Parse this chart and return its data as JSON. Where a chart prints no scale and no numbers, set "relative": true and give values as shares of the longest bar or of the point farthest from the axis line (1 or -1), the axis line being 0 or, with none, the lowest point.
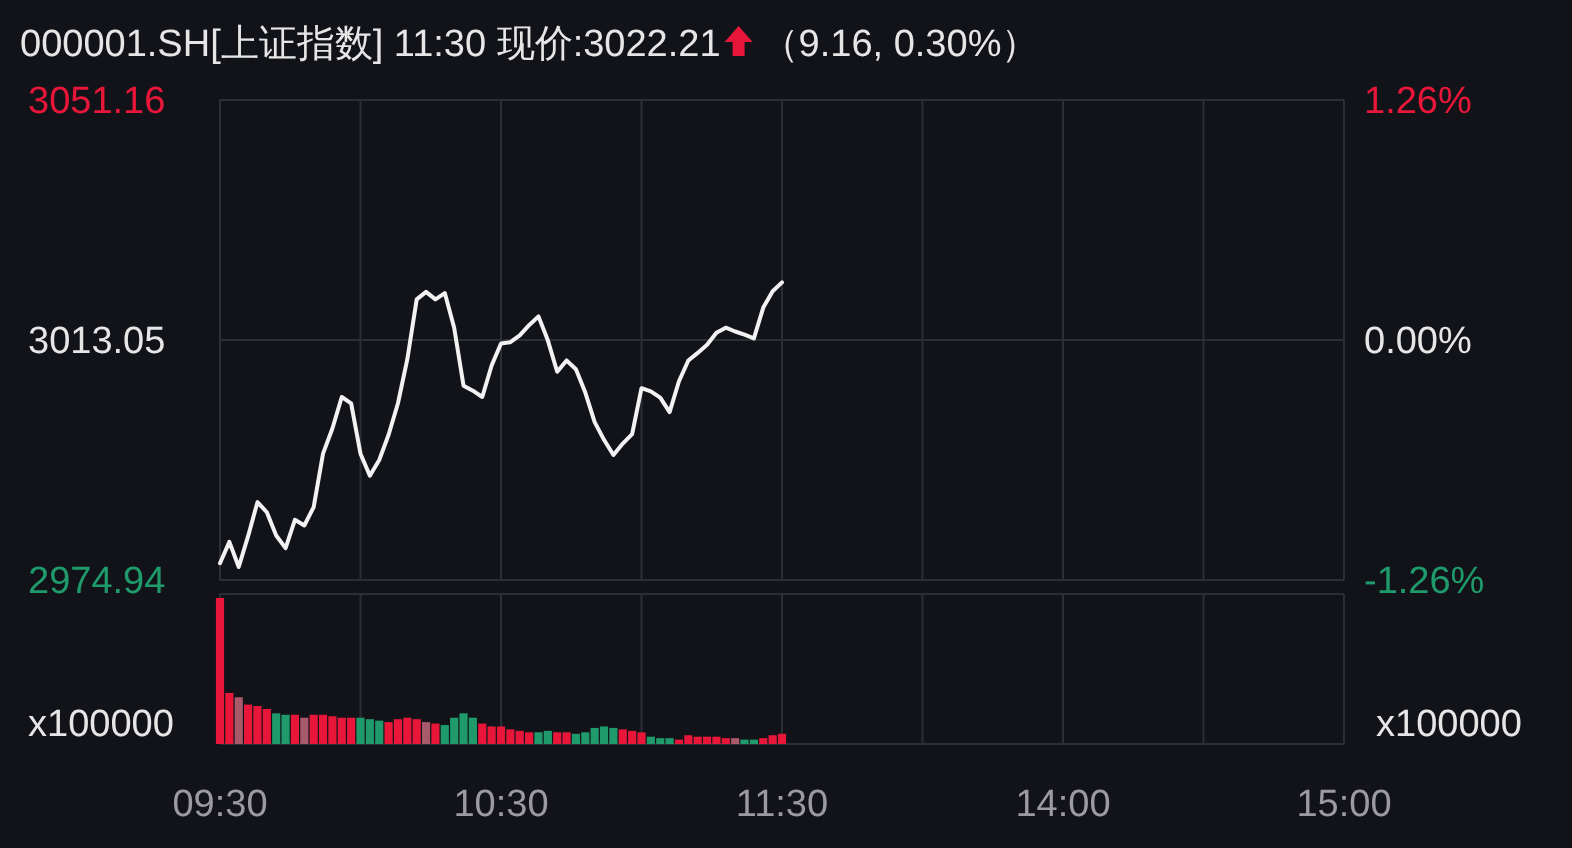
{
  "chart_data": [
    {
      "type": "line",
      "title": "000001.SH[上证指数] 11:30 现价:3022.21",
      "subtitle": "（9.16, 0.30%）",
      "categories": [
        null,
        null,
        null,
        null,
        null,
        null,
        null,
        null,
        null,
        null,
        null,
        null,
        null,
        null,
        null,
        null,
        null,
        null,
        null,
        null,
        null,
        null,
        null,
        null,
        null,
        null,
        null,
        null,
        null,
        null,
        null,
        null,
        null,
        null,
        null,
        null,
        null,
        null,
        null,
        null,
        null,
        null,
        null,
        null,
        null,
        null,
        null,
        null,
        null,
        null,
        null,
        null,
        null,
        null,
        null,
        null,
        null,
        null,
        null,
        null,
        null,
        null,
        null,
        null,
        null,
        null,
        null,
        null,
        null,
        null,
        null,
        null,
        null,
        null,
        null,
        null,
        null,
        null,
        null,
        null,
        null,
        null,
        null,
        null,
        null,
        null,
        null,
        null,
        null,
        null,
        null,
        null,
        null,
        null,
        null,
        null,
        null,
        null,
        null,
        null,
        null,
        null,
        null,
        null,
        null,
        null,
        null,
        null,
        null,
        null,
        null,
        null,
        null,
        null,
        null,
        null,
        null,
        null,
        null,
        null,
        null
      ],
      "series": [
        {
          "color": "#f2f2f2",
          "values": [
            2977.6,
            2981.0,
            2977.0,
            2981.9,
            2987.3,
            2985.7,
            2982.0,
            2980.0,
            2984.5,
            2983.6,
            2986.5,
            2995.0,
            2999.0,
            3004.0,
            3003.0,
            2995.0,
            2991.5,
            2994.0,
            2998.0,
            3003.0,
            3010.0,
            3019.5,
            3020.7,
            3019.5,
            3020.5,
            3015.0,
            3005.8,
            3005.0,
            3004.0,
            3009.0,
            3012.5,
            3012.7,
            3013.8,
            3015.4,
            3016.8,
            3013.0,
            3008.0,
            3009.8,
            3008.4,
            3004.7,
            3000.0,
            2997.2,
            2994.8,
            2996.6,
            2998.1,
            3005.4,
            3004.9,
            3003.9,
            3001.6,
            3006.5,
            3009.8,
            3011.0,
            3012.3,
            3014.2,
            3015.0,
            3014.4,
            3013.9,
            3013.3,
            3018.2,
            3020.8,
            3022.2,
            null,
            null,
            null,
            null,
            null,
            null,
            null,
            null,
            null,
            null,
            null,
            null,
            null,
            null,
            null,
            null,
            null,
            null,
            null,
            null,
            null,
            null,
            null,
            null,
            null,
            null,
            null,
            null,
            null,
            null,
            null,
            null,
            null,
            null,
            null,
            null,
            null,
            null,
            null,
            null,
            null,
            null,
            null,
            null,
            null,
            null,
            null,
            null,
            null,
            null,
            null,
            null,
            null,
            null,
            null,
            null,
            null,
            null,
            null,
            null
          ]
        }
      ],
      "ylim": [
        2974.94,
        3051.16
      ],
      "yticks": [
        2974.94,
        3013.05,
        3051.16
      ],
      "y2lim": [
        -1.26,
        1.26
      ],
      "y2ticks": [
        {
          "value": -1.26,
          "label": "-1.26%"
        },
        {
          "value": 0,
          "label": "0.00%"
        },
        {
          "value": 1.26,
          "label": "1.26%"
        }
      ],
      "grid": true,
      "tick_labels": "y",
      "line_style": "solid"
    },
    {
      "type": "bar",
      "relative": true,
      "ylabel": "x100000",
      "y2label": "x100000",
      "categories": [
        "09:30",
        null,
        null,
        null,
        null,
        null,
        null,
        null,
        null,
        null,
        null,
        null,
        null,
        null,
        null,
        null,
        null,
        null,
        null,
        null,
        null,
        null,
        null,
        null,
        null,
        null,
        null,
        null,
        null,
        null,
        "10:30",
        null,
        null,
        null,
        null,
        null,
        null,
        null,
        null,
        null,
        null,
        null,
        null,
        null,
        null,
        null,
        null,
        null,
        null,
        null,
        null,
        null,
        null,
        null,
        null,
        null,
        null,
        null,
        null,
        null,
        "11:30",
        null,
        null,
        null,
        null,
        null,
        null,
        null,
        null,
        null,
        null,
        null,
        null,
        null,
        null,
        null,
        null,
        null,
        null,
        null,
        null,
        null,
        null,
        null,
        null,
        null,
        null,
        null,
        null,
        null,
        "14:00",
        null,
        null,
        null,
        null,
        null,
        null,
        null,
        null,
        null,
        null,
        null,
        null,
        null,
        null,
        null,
        null,
        null,
        null,
        null,
        null,
        null,
        null,
        null,
        null,
        null,
        null,
        null,
        null,
        null,
        "15:00"
      ],
      "values": [
        1.0,
        0.35,
        0.32,
        0.27,
        0.26,
        0.24,
        0.21,
        0.2,
        0.2,
        0.18,
        0.2,
        0.2,
        0.19,
        0.18,
        0.18,
        0.18,
        0.17,
        0.16,
        0.15,
        0.17,
        0.18,
        0.17,
        0.15,
        0.14,
        0.13,
        0.18,
        0.21,
        0.18,
        0.14,
        0.12,
        0.12,
        0.1,
        0.09,
        0.08,
        0.08,
        0.09,
        0.08,
        0.08,
        0.07,
        0.08,
        0.11,
        0.12,
        0.11,
        0.1,
        0.09,
        0.08,
        0.05,
        0.04,
        0.04,
        0.03,
        0.06,
        0.05,
        0.05,
        0.05,
        0.04,
        0.04,
        0.03,
        0.03,
        0.04,
        0.06,
        0.07,
        null,
        null,
        null,
        null,
        null,
        null,
        null,
        null,
        null,
        null,
        null,
        null,
        null,
        null,
        null,
        null,
        null,
        null,
        null,
        null,
        null,
        null,
        null,
        null,
        null,
        null,
        null,
        null,
        null,
        null,
        null,
        null,
        null,
        null,
        null,
        null,
        null,
        null,
        null,
        null,
        null,
        null,
        null,
        null,
        null,
        null,
        null,
        null,
        null,
        null,
        null,
        null,
        null,
        null,
        null,
        null,
        null,
        null,
        null,
        null
      ],
      "colors": [
        "#e8173a",
        "#e8173a",
        "#a85a6a",
        "#e8173a",
        "#e8173a",
        "#e8173a",
        "#1f9a6a",
        "#1f9a6a",
        "#e8173a",
        "#a85a6a",
        "#e8173a",
        "#e8173a",
        "#e8173a",
        "#e8173a",
        "#e8173a",
        "#1f9a6a",
        "#1f9a6a",
        "#1f9a6a",
        "#e8173a",
        "#e8173a",
        "#e8173a",
        "#e8173a",
        "#a85a6a",
        "#e8173a",
        "#1f9a6a",
        "#1f9a6a",
        "#1f9a6a",
        "#1f9a6a",
        "#e8173a",
        "#e8173a",
        "#e8173a",
        "#e8173a",
        "#e8173a",
        "#e8173a",
        "#1f9a6a",
        "#1f9a6a",
        "#e8173a",
        "#e8173a",
        "#1f9a6a",
        "#1f9a6a",
        "#1f9a6a",
        "#1f9a6a",
        "#1f9a6a",
        "#e8173a",
        "#e8173a",
        "#e8173a",
        "#1f9a6a",
        "#1f9a6a",
        "#1f9a6a",
        "#e8173a",
        "#e8173a",
        "#e8173a",
        "#e8173a",
        "#e8173a",
        "#e8173a",
        "#a85a6a",
        "#1f9a6a",
        "#1f9a6a",
        "#e8173a",
        "#e8173a",
        "#e8173a",
        null,
        null,
        null,
        null,
        null,
        null,
        null,
        null,
        null,
        null,
        null,
        null,
        null,
        null,
        null,
        null,
        null,
        null,
        null,
        null,
        null,
        null,
        null,
        null,
        null,
        null,
        null,
        null,
        null,
        null,
        null,
        null,
        null,
        null,
        null,
        null,
        null,
        null,
        null,
        null,
        null,
        null,
        null,
        null,
        null,
        null,
        null,
        null,
        null,
        null,
        null,
        null,
        null,
        null,
        null,
        null,
        null,
        null,
        null,
        null
      ],
      "grid": "x",
      "tick_labels": "x"
    }
  ]
}
